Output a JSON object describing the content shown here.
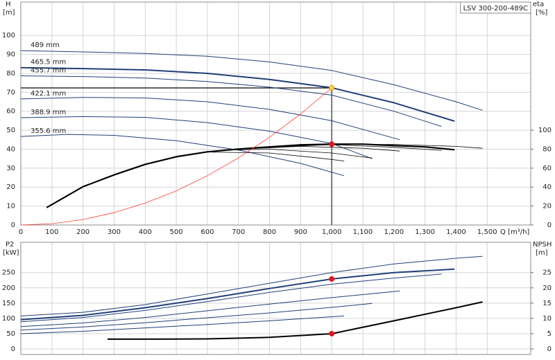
{
  "chart_data": [
    {
      "type": "line",
      "title": "LSV 300-200-489C",
      "y_label": "H",
      "y_unit": "[m]",
      "y2_label": "eta",
      "y2_unit": "[%]",
      "x_label": "Q [m³/h]",
      "xlim": [
        0,
        1640
      ],
      "ylim": [
        0,
        117.6
      ],
      "y2lim": [
        0,
        235.2
      ],
      "xticks": [
        0,
        100,
        200,
        300,
        400,
        500,
        600,
        700,
        800,
        900,
        {
          "value": 1000,
          "label": "1,000"
        },
        {
          "value": 1100,
          "label": "1,100"
        },
        {
          "value": 1200,
          "label": "1,200"
        },
        {
          "value": 1300,
          "label": "1,300"
        },
        {
          "value": 1400,
          "label": "1,400"
        },
        {
          "value": 1500,
          "label": "1,500"
        }
      ],
      "yticks": [
        0,
        10,
        20,
        30,
        40,
        50,
        60,
        70,
        80,
        90,
        100
      ],
      "y2ticks": [
        0,
        20,
        40,
        60,
        80,
        100
      ],
      "grid": true,
      "series": [
        {
          "name": "489 mm",
          "color": "#1f3f7a",
          "width": 1,
          "x": [
            0,
            200,
            400,
            600,
            800,
            1000,
            1200,
            1400,
            1485
          ],
          "values": [
            92,
            91.3,
            90.5,
            89,
            86,
            81.5,
            74,
            65,
            60.5
          ]
        },
        {
          "name": "465.5 mm",
          "color": "#1f3f7a",
          "width": 2,
          "x": [
            0,
            200,
            400,
            600,
            800,
            1000,
            1200,
            1395
          ],
          "values": [
            83,
            82.5,
            81.8,
            80,
            76.8,
            72.4,
            64.5,
            54.8
          ]
        },
        {
          "name": "455.7 mm",
          "color": "#1f3f7a",
          "width": 1,
          "x": [
            0,
            200,
            400,
            600,
            800,
            1000,
            1200,
            1353
          ],
          "values": [
            78.7,
            78.3,
            77.5,
            75.7,
            72.7,
            68.5,
            60,
            52
          ]
        },
        {
          "name": "422.1 mm",
          "color": "#1f3f7a",
          "width": 1,
          "x": [
            0,
            200,
            400,
            600,
            800,
            1000,
            1219
          ],
          "values": [
            66.5,
            67.3,
            67,
            65,
            61,
            55,
            45
          ]
        },
        {
          "name": "388.9 mm",
          "color": "#1f3f7a",
          "width": 1,
          "x": [
            0,
            200,
            400,
            600,
            800,
            1000,
            1130
          ],
          "values": [
            56.6,
            57.2,
            56.8,
            54,
            49.5,
            43,
            35
          ]
        },
        {
          "name": "355.6 mm",
          "color": "#1f3f7a",
          "width": 1,
          "x": [
            0,
            150,
            300,
            500,
            700,
            900,
            1040
          ],
          "values": [
            46.7,
            47.8,
            47.3,
            44.5,
            39.5,
            32.5,
            26
          ]
        },
        {
          "axis": "y2",
          "color": "#000000",
          "width": 2.2,
          "x": [
            83,
            200,
            300,
            400,
            500,
            600,
            700,
            800,
            900,
            1000,
            1100,
            1200,
            1300,
            1395
          ],
          "values": [
            18.4,
            40.4,
            52.9,
            64,
            72,
            77.2,
            80.1,
            82.4,
            84.6,
            85.3,
            85.3,
            83.8,
            82.4,
            79.4
          ]
        },
        {
          "axis": "y2",
          "color": "#000000",
          "width": 0.8,
          "x": [
            800,
            1000,
            1200,
            1400,
            1485
          ],
          "values": [
            82,
            85,
            85,
            83,
            80.9
          ]
        },
        {
          "axis": "y2",
          "color": "#000000",
          "width": 0.8,
          "x": [
            800,
            1000,
            1200,
            1353
          ],
          "values": [
            82.4,
            84.7,
            82,
            78.7
          ]
        },
        {
          "axis": "y2",
          "color": "#000000",
          "width": 0.8,
          "x": [
            700,
            900,
            1100,
            1219
          ],
          "values": [
            80,
            83,
            81,
            78
          ]
        },
        {
          "axis": "y2",
          "color": "#000000",
          "width": 0.8,
          "x": [
            650,
            800,
            1000,
            1130
          ],
          "values": [
            79,
            80,
            76,
            70.6
          ]
        },
        {
          "axis": "y2",
          "color": "#000000",
          "width": 0.8,
          "x": [
            600,
            800,
            950,
            1040
          ],
          "values": [
            77,
            76,
            71,
            67.6
          ]
        },
        {
          "color": "#ff3b30",
          "width": 0.8,
          "x": [
            0,
            100,
            200,
            300,
            400,
            500,
            600,
            700,
            800,
            900,
            1000
          ],
          "values": [
            0,
            0.7,
            2.9,
            6.5,
            11.6,
            18,
            26,
            35.4,
            46.3,
            58.6,
            72.3
          ]
        }
      ],
      "guides": {
        "hline": {
          "y": 72.3,
          "x_end": 1000
        },
        "vline": {
          "x": 1000,
          "y_end": 72.3
        }
      },
      "markers": [
        {
          "x": 1000,
          "y": 72.3,
          "color": "#ffd24a"
        },
        {
          "x": 1000,
          "y": 85.3,
          "axis": "y2",
          "color": "#e8141e"
        }
      ]
    },
    {
      "type": "line",
      "y_label": "P2",
      "y_unit": "[kW]",
      "y2_label": "NPSH",
      "y2_unit": "[m]",
      "xlim": [
        0,
        1640
      ],
      "ylim": [
        -18,
        349
      ],
      "y2lim": [
        -1.8,
        34.9
      ],
      "yticks": [
        0,
        50,
        100,
        150,
        200,
        250
      ],
      "y2ticks": [
        0,
        5,
        10,
        15,
        20,
        25
      ],
      "grid": true,
      "series": [
        {
          "color": "#1f3f7a",
          "width": 1,
          "x": [
            0,
            200,
            400,
            600,
            800,
            1000,
            1200,
            1400,
            1485
          ],
          "values": [
            108,
            120,
            145,
            180,
            215,
            250,
            278,
            297,
            303
          ]
        },
        {
          "color": "#1f3f7a",
          "width": 2,
          "x": [
            0,
            200,
            400,
            600,
            800,
            1000,
            1200,
            1395
          ],
          "values": [
            96,
            110,
            135,
            165,
            198,
            229,
            250,
            261
          ]
        },
        {
          "color": "#1f3f7a",
          "width": 1,
          "x": [
            0,
            200,
            400,
            600,
            800,
            1000,
            1200,
            1353
          ],
          "values": [
            89,
            103,
            126,
            155,
            185,
            212,
            232,
            245
          ]
        },
        {
          "color": "#1f3f7a",
          "width": 1,
          "x": [
            0,
            200,
            400,
            600,
            800,
            1000,
            1219
          ],
          "values": [
            73,
            85,
            103,
            125,
            147,
            168,
            190
          ]
        },
        {
          "color": "#1f3f7a",
          "width": 1,
          "x": [
            0,
            200,
            400,
            600,
            800,
            1000,
            1130
          ],
          "values": [
            62,
            72,
            86,
            102,
            118,
            136,
            149
          ]
        },
        {
          "color": "#1f3f7a",
          "width": 1,
          "x": [
            0,
            200,
            400,
            600,
            800,
            1040
          ],
          "values": [
            50,
            58,
            69,
            80,
            92,
            108
          ]
        },
        {
          "axis": "y2",
          "color": "#000000",
          "width": 2,
          "x": [
            279,
            400,
            600,
            800,
            1000,
            1200,
            1400,
            1485
          ],
          "values": [
            3.2,
            3.2,
            3.3,
            3.8,
            5.0,
            9.2,
            13.5,
            15.4
          ]
        }
      ],
      "markers": [
        {
          "x": 1000,
          "y": 229,
          "color": "#e8141e"
        },
        {
          "x": 1000,
          "y": 5.0,
          "axis": "y2",
          "color": "#e8141e"
        }
      ]
    }
  ]
}
